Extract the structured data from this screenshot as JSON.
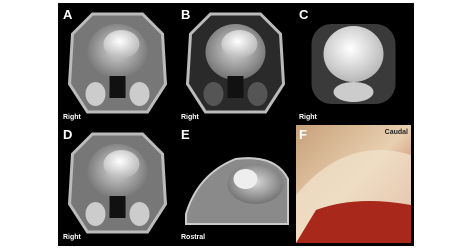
{
  "panels": [
    {
      "letter": "A",
      "caption": "Right"
    },
    {
      "letter": "B",
      "caption": "Right"
    },
    {
      "letter": "C",
      "caption": "Right"
    },
    {
      "letter": "D",
      "caption": "Right"
    },
    {
      "letter": "E",
      "caption": "Rostral"
    },
    {
      "letter": "F",
      "caption": "Caudal"
    }
  ]
}
